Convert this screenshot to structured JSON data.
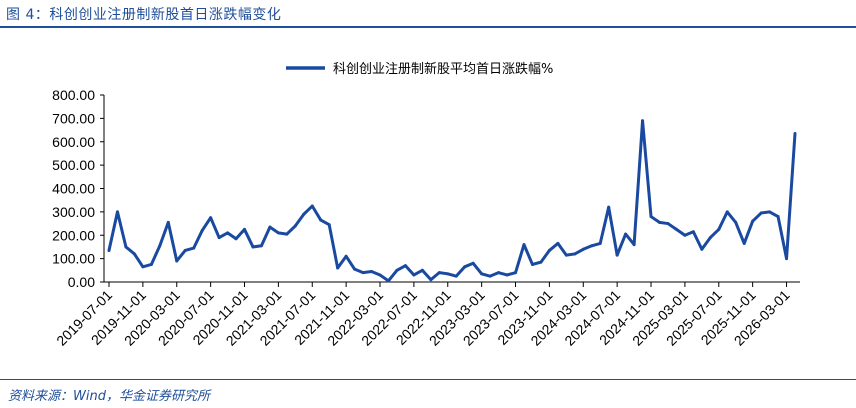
{
  "figure": {
    "title": "图 4：科创创业注册制新股首日涨跌幅变化",
    "source": "资料来源：Wind，华金证券研究所"
  },
  "colors": {
    "accent": "#1f4e9a",
    "series": "#1a4aa0"
  },
  "chart_data": {
    "type": "line",
    "title": "",
    "xlabel": "",
    "ylabel": "",
    "ylim": [
      0,
      800
    ],
    "yticks": [
      "0.00",
      "100.00",
      "200.00",
      "300.00",
      "400.00",
      "500.00",
      "600.00",
      "700.00",
      "800.00"
    ],
    "xtick_labels": [
      "2019-07-01",
      "2019-11-01",
      "2020-03-01",
      "2020-07-01",
      "2020-11-01",
      "2021-03-01",
      "2021-07-01",
      "2021-11-01",
      "2022-03-01",
      "2022-07-01",
      "2022-11-01",
      "2023-03-01",
      "2023-07-01",
      "2023-11-01",
      "2024-03-01",
      "2024-07-01",
      "2024-11-01",
      "2025-03-01",
      "2025-07-01",
      "2025-11-01",
      "2026-03-01"
    ],
    "grid": false,
    "legend_position": "top-center",
    "series": [
      {
        "name": "科创创业注册制新股平均首日涨跌幅%",
        "x": [
          "2019-07",
          "2019-08",
          "2019-09",
          "2019-10",
          "2019-11",
          "2019-12",
          "2020-01",
          "2020-02",
          "2020-03",
          "2020-04",
          "2020-05",
          "2020-06",
          "2020-07",
          "2020-08",
          "2020-09",
          "2020-10",
          "2020-11",
          "2020-12",
          "2021-01",
          "2021-02",
          "2021-03",
          "2021-04",
          "2021-05",
          "2021-06",
          "2021-07",
          "2021-08",
          "2021-09",
          "2021-10",
          "2021-11",
          "2021-12",
          "2022-01",
          "2022-02",
          "2022-03",
          "2022-04",
          "2022-05",
          "2022-06",
          "2022-07",
          "2022-08",
          "2022-09",
          "2022-10",
          "2022-11",
          "2022-12",
          "2023-01",
          "2023-02",
          "2023-03",
          "2023-04",
          "2023-05",
          "2023-06",
          "2023-07",
          "2023-08",
          "2023-09",
          "2023-10",
          "2023-11",
          "2023-12",
          "2024-01",
          "2024-02",
          "2024-03",
          "2024-04",
          "2024-05",
          "2024-06",
          "2024-07",
          "2024-08",
          "2024-09",
          "2024-10",
          "2024-11",
          "2024-12",
          "2025-01",
          "2025-02",
          "2025-03",
          "2025-04",
          "2025-05",
          "2025-06",
          "2025-07",
          "2025-08",
          "2025-09",
          "2025-10",
          "2025-11",
          "2025-12",
          "2026-01",
          "2026-02",
          "2026-03",
          "2026-04"
        ],
        "values": [
          135,
          300,
          150,
          120,
          65,
          75,
          155,
          255,
          90,
          135,
          145,
          220,
          275,
          190,
          210,
          185,
          225,
          150,
          155,
          235,
          210,
          205,
          240,
          290,
          325,
          265,
          245,
          60,
          110,
          55,
          40,
          45,
          30,
          5,
          50,
          70,
          30,
          50,
          10,
          40,
          35,
          25,
          65,
          80,
          35,
          25,
          40,
          30,
          40,
          160,
          75,
          85,
          135,
          165,
          115,
          120,
          140,
          155,
          165,
          320,
          115,
          205,
          160,
          690,
          280,
          255,
          250,
          225,
          200,
          215,
          140,
          190,
          225,
          300,
          255,
          165,
          260,
          295,
          300,
          280,
          100,
          635
        ]
      }
    ]
  }
}
